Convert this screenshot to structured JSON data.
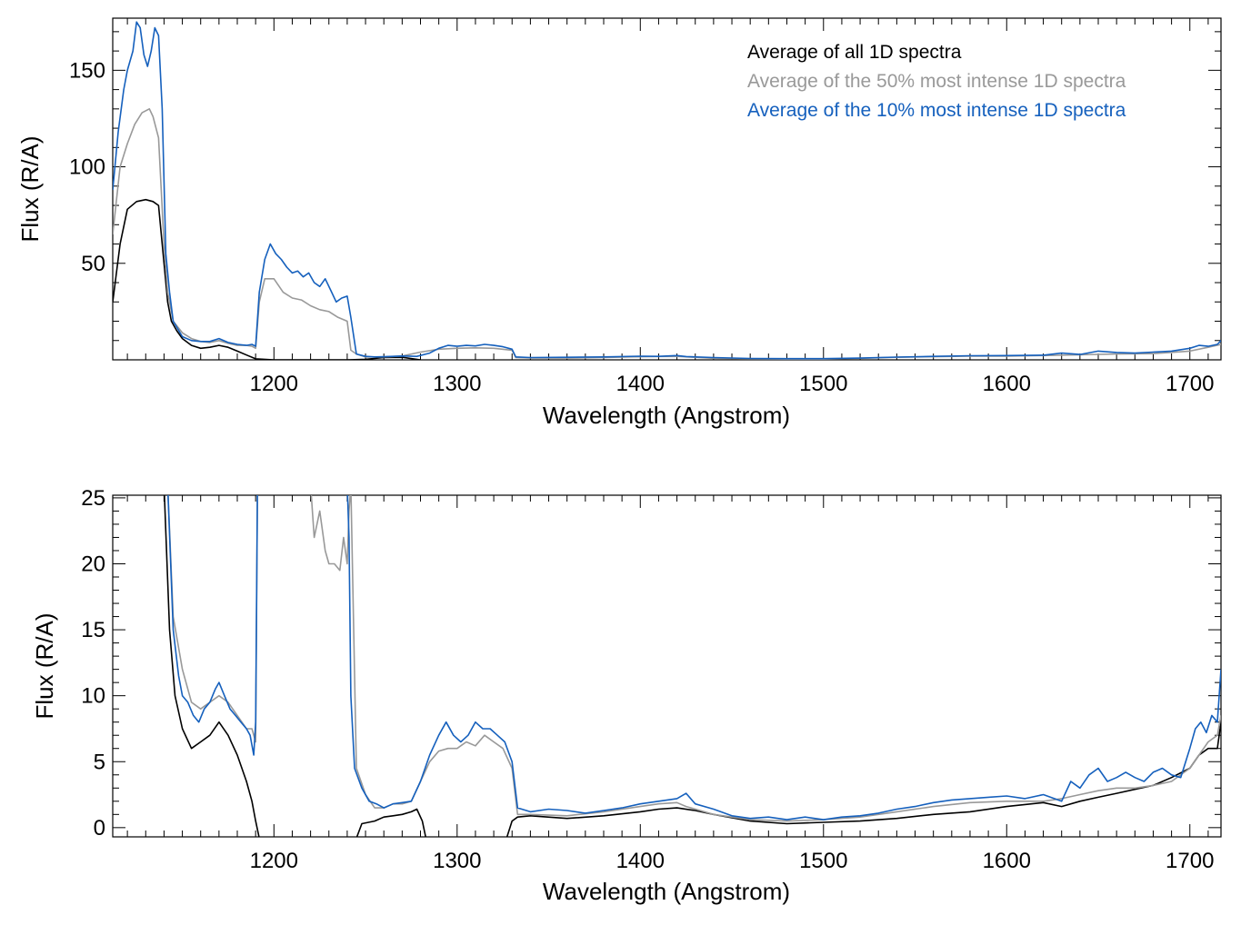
{
  "chart_data": [
    {
      "type": "line",
      "xlabel": "Wavelength (Angstrom)",
      "ylabel": "Flux (R/A)",
      "xlim": [
        1112,
        1717
      ],
      "ylim": [
        0,
        177
      ],
      "xticks": [
        1200,
        1300,
        1400,
        1500,
        1600,
        1700
      ],
      "yticks": [
        50,
        100,
        150
      ],
      "grid": false,
      "legend_position": "top-right",
      "series": [
        {
          "name": "Average of all 1D spectra",
          "color": "#000000",
          "x": [
            1112,
            1116,
            1120,
            1125,
            1130,
            1134,
            1137,
            1140,
            1142,
            1144,
            1147,
            1150,
            1155,
            1160,
            1165,
            1170,
            1175,
            1180,
            1185,
            1190,
            1200,
            1220,
            1240,
            1250,
            1260,
            1270,
            1280
          ],
          "y": [
            30,
            60,
            78,
            82,
            83,
            82,
            80,
            50,
            30,
            20,
            15,
            11,
            7.5,
            6,
            6.5,
            7.5,
            6.5,
            4.5,
            2.5,
            0.5,
            0,
            0,
            0,
            0.3,
            1.2,
            1.3,
            0
          ]
        },
        {
          "name": "Average of the 50% most intense 1D spectra",
          "color": "#999999",
          "x": [
            1112,
            1116,
            1120,
            1124,
            1128,
            1132,
            1134,
            1137,
            1140,
            1142,
            1145,
            1150,
            1155,
            1160,
            1165,
            1170,
            1175,
            1180,
            1185,
            1188,
            1190,
            1192,
            1195,
            1200,
            1205,
            1210,
            1215,
            1220,
            1225,
            1230,
            1235,
            1240,
            1242,
            1245,
            1250,
            1260,
            1270,
            1280,
            1290,
            1300,
            1310,
            1320,
            1330,
            1332,
            1340,
            1360,
            1380,
            1400,
            1420,
            1440,
            1460,
            1480,
            1500,
            1520,
            1540,
            1560,
            1580,
            1600,
            1620,
            1640,
            1660,
            1680,
            1700,
            1710,
            1717
          ],
          "y": [
            65,
            100,
            112,
            122,
            128,
            130,
            126,
            115,
            60,
            35,
            20,
            14,
            11,
            9.5,
            9,
            10,
            8.5,
            7.5,
            7.5,
            7,
            6,
            30,
            42,
            42,
            35,
            32,
            31,
            28,
            26,
            25,
            22,
            20,
            5,
            3,
            1.5,
            1.5,
            2.0,
            4.0,
            5.5,
            6.0,
            6.2,
            6.0,
            5.0,
            1.2,
            1.0,
            0.9,
            1.2,
            1.6,
            1.8,
            0.8,
            0.5,
            0.4,
            0.4,
            0.8,
            1.3,
            1.6,
            1.9,
            1.9,
            2.2,
            2.6,
            3.0,
            3.2,
            4.5,
            6.5,
            8
          ]
        },
        {
          "name": "Average of the 10% most intense 1D spectra",
          "color": "#1560bd",
          "x": [
            1112,
            1115,
            1118,
            1120,
            1123,
            1125,
            1127,
            1129,
            1131,
            1133,
            1135,
            1137,
            1139,
            1141,
            1143,
            1145,
            1150,
            1155,
            1160,
            1165,
            1170,
            1175,
            1180,
            1185,
            1188,
            1190,
            1192,
            1195,
            1198,
            1201,
            1204,
            1207,
            1210,
            1213,
            1216,
            1219,
            1222,
            1225,
            1228,
            1231,
            1234,
            1237,
            1240,
            1242,
            1245,
            1250,
            1255,
            1260,
            1270,
            1278,
            1285,
            1290,
            1295,
            1300,
            1305,
            1310,
            1315,
            1320,
            1325,
            1330,
            1332,
            1340,
            1360,
            1380,
            1400,
            1410,
            1420,
            1425,
            1440,
            1460,
            1480,
            1500,
            1520,
            1540,
            1560,
            1580,
            1600,
            1620,
            1630,
            1640,
            1650,
            1660,
            1670,
            1680,
            1690,
            1700,
            1705,
            1710,
            1715,
            1717
          ],
          "y": [
            88,
            118,
            140,
            150,
            160,
            175,
            172,
            158,
            152,
            160,
            172,
            168,
            130,
            55,
            35,
            20,
            12,
            10,
            9.5,
            9.5,
            11,
            9,
            8,
            7.5,
            8,
            7,
            35,
            52,
            60,
            55,
            52,
            48,
            45,
            46,
            43,
            45,
            40,
            38,
            42,
            36,
            30,
            32,
            33,
            22,
            3,
            1.8,
            1.5,
            1.6,
            2.0,
            1.8,
            3.5,
            6.0,
            7.5,
            7.0,
            7.5,
            7.2,
            8.0,
            7.5,
            6.8,
            5.5,
            1.5,
            1.2,
            1.3,
            1.5,
            1.9,
            1.8,
            2.2,
            1.7,
            1.2,
            0.7,
            0.6,
            0.6,
            0.9,
            1.4,
            1.8,
            2.1,
            2.2,
            2.4,
            3.5,
            2.8,
            4.5,
            3.8,
            3.5,
            4.0,
            4.5,
            6.0,
            7.5,
            7.0,
            8.0,
            10
          ]
        }
      ]
    },
    {
      "type": "line",
      "xlabel": "Wavelength (Angstrom)",
      "ylabel": "Flux (R/A)",
      "xlim": [
        1112,
        1717
      ],
      "ylim": [
        -0.7,
        25.2
      ],
      "xticks": [
        1200,
        1300,
        1400,
        1500,
        1600,
        1700
      ],
      "yticks": [
        0,
        5,
        10,
        15,
        20,
        25
      ],
      "grid": false,
      "series": [
        {
          "name": "Average of all 1D spectra",
          "color": "#000000",
          "x": [
            1140,
            1143,
            1146,
            1150,
            1155,
            1160,
            1165,
            1170,
            1175,
            1180,
            1185,
            1188,
            1190,
            1192,
            1245,
            1248,
            1255,
            1260,
            1265,
            1270,
            1275,
            1278,
            1281,
            1283,
            1327,
            1330,
            1333,
            1340,
            1360,
            1380,
            1400,
            1410,
            1420,
            1430,
            1440,
            1460,
            1480,
            1500,
            1520,
            1540,
            1560,
            1580,
            1600,
            1620,
            1630,
            1640,
            1650,
            1660,
            1670,
            1680,
            1690,
            1700,
            1705,
            1710,
            1715,
            1717
          ],
          "y": [
            26,
            15,
            10,
            7.5,
            6.0,
            6.5,
            7.0,
            8.0,
            7.0,
            5.5,
            3.5,
            2.0,
            0.5,
            -0.8,
            -0.8,
            0.3,
            0.5,
            0.8,
            0.9,
            1.0,
            1.2,
            1.4,
            0.5,
            -0.8,
            -0.8,
            0.5,
            0.8,
            0.9,
            0.7,
            0.9,
            1.2,
            1.4,
            1.5,
            1.3,
            1.0,
            0.5,
            0.3,
            0.4,
            0.5,
            0.7,
            1.0,
            1.2,
            1.6,
            1.9,
            1.6,
            2.0,
            2.3,
            2.6,
            2.9,
            3.2,
            3.8,
            4.5,
            5.5,
            6.0,
            6.0,
            8.0
          ]
        },
        {
          "name": "Average of the 50% most intense 1D spectra",
          "color": "#999999",
          "x": [
            1142,
            1145,
            1150,
            1155,
            1160,
            1165,
            1170,
            1175,
            1180,
            1185,
            1188,
            1190,
            1191,
            1220,
            1222,
            1225,
            1228,
            1230,
            1233,
            1236,
            1238,
            1240,
            1241,
            1242,
            1245,
            1250,
            1255,
            1260,
            1265,
            1270,
            1275,
            1280,
            1285,
            1290,
            1295,
            1300,
            1305,
            1310,
            1315,
            1320,
            1325,
            1330,
            1333,
            1340,
            1360,
            1380,
            1400,
            1410,
            1420,
            1425,
            1440,
            1460,
            1480,
            1500,
            1520,
            1540,
            1560,
            1580,
            1600,
            1620,
            1630,
            1640,
            1650,
            1660,
            1670,
            1680,
            1690,
            1700,
            1705,
            1710,
            1715,
            1717
          ],
          "y": [
            26,
            16,
            12,
            9.5,
            9.0,
            9.5,
            10.0,
            9.5,
            8.5,
            7.5,
            7.5,
            6.5,
            26,
            26,
            22,
            24,
            21,
            20,
            20,
            19.5,
            22,
            20,
            24,
            26,
            4.5,
            2.5,
            1.5,
            1.5,
            1.8,
            1.8,
            2.0,
            3.5,
            5.0,
            5.8,
            6.0,
            6.0,
            6.5,
            6.2,
            7.0,
            6.5,
            6.0,
            4.5,
            1.0,
            1.0,
            0.9,
            1.2,
            1.6,
            1.8,
            1.9,
            1.6,
            1.0,
            0.6,
            0.5,
            0.6,
            0.8,
            1.2,
            1.6,
            1.9,
            2.0,
            2.0,
            2.2,
            2.5,
            2.8,
            3.0,
            3.0,
            3.2,
            3.5,
            4.5,
            5.5,
            6.5,
            7.0,
            8.5
          ]
        },
        {
          "name": "Average of the 10% most intense 1D spectra",
          "color": "#1560bd",
          "x": [
            1142,
            1145,
            1148,
            1150,
            1153,
            1156,
            1159,
            1162,
            1165,
            1168,
            1170,
            1173,
            1176,
            1179,
            1182,
            1185,
            1187,
            1189,
            1190,
            1191,
            1240,
            1241,
            1242,
            1244,
            1248,
            1252,
            1256,
            1260,
            1265,
            1270,
            1275,
            1280,
            1285,
            1290,
            1294,
            1298,
            1302,
            1306,
            1310,
            1314,
            1318,
            1322,
            1326,
            1330,
            1333,
            1340,
            1350,
            1360,
            1370,
            1380,
            1390,
            1400,
            1410,
            1420,
            1425,
            1430,
            1440,
            1450,
            1460,
            1470,
            1480,
            1490,
            1500,
            1510,
            1520,
            1530,
            1540,
            1550,
            1560,
            1570,
            1580,
            1590,
            1600,
            1610,
            1620,
            1630,
            1635,
            1640,
            1645,
            1650,
            1655,
            1660,
            1665,
            1670,
            1675,
            1680,
            1685,
            1690,
            1695,
            1700,
            1703,
            1706,
            1709,
            1712,
            1715,
            1717
          ],
          "y": [
            26,
            15,
            11.5,
            10,
            9.5,
            8.5,
            8.0,
            9.0,
            9.5,
            10.5,
            11.0,
            10.0,
            9.0,
            8.5,
            8.0,
            7.5,
            7.0,
            5.5,
            8.0,
            26,
            26,
            22,
            10,
            4.5,
            3.0,
            2.0,
            1.8,
            1.5,
            1.8,
            1.9,
            2.0,
            3.5,
            5.5,
            7.0,
            8.0,
            7.0,
            6.5,
            7.0,
            8.0,
            7.5,
            7.5,
            7.0,
            6.5,
            5.0,
            1.5,
            1.2,
            1.4,
            1.3,
            1.1,
            1.3,
            1.5,
            1.8,
            2.0,
            2.2,
            2.6,
            1.8,
            1.4,
            0.9,
            0.7,
            0.8,
            0.6,
            0.8,
            0.6,
            0.8,
            0.9,
            1.1,
            1.4,
            1.6,
            1.9,
            2.1,
            2.2,
            2.3,
            2.4,
            2.2,
            2.5,
            2.0,
            3.5,
            3.0,
            4.0,
            4.5,
            3.5,
            3.8,
            4.2,
            3.8,
            3.5,
            4.2,
            4.5,
            4.0,
            3.8,
            6.0,
            7.5,
            8.0,
            7.2,
            8.5,
            8.0,
            12.0
          ]
        }
      ]
    }
  ]
}
